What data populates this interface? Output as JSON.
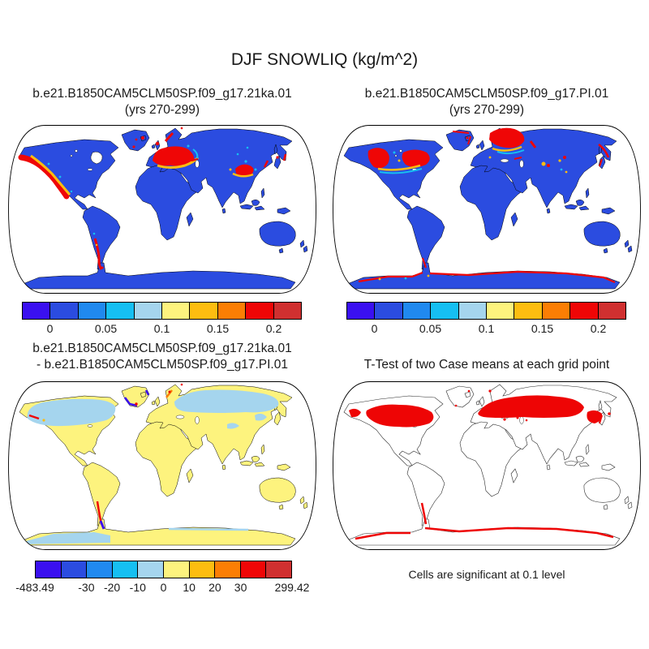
{
  "title": "DJF SNOWLIQ (kg/m^2)",
  "panels": {
    "top_left": {
      "title_line1": "b.e21.B1850CAM5CLM50SP.f09_g17.21ka.01",
      "title_line2": "(yrs 270-299)"
    },
    "top_right": {
      "title_line1": "b.e21.B1850CAM5CLM50SP.f09_g17.PI.01",
      "title_line2": "(yrs 270-299)"
    },
    "bottom_left": {
      "title_line1": "b.e21.B1850CAM5CLM50SP.f09_g17.21ka.01",
      "title_line2": "- b.e21.B1850CAM5CLM50SP.f09_g17.PI.01"
    },
    "bottom_right": {
      "title": "T-Test of two Case means at each grid point",
      "caption": "Cells are significant at 0.1 level"
    }
  },
  "palette": {
    "colors": [
      "#3a10f0",
      "#2b4ce0",
      "#2089ef",
      "#16bff2",
      "#a5d5ee",
      "#fdf37e",
      "#fdbd10",
      "#fb7e04",
      "#ef0606",
      "#d03030"
    ]
  },
  "colors": {
    "land_blue": "#2b4ce0",
    "diff_pos": "#fdf37e",
    "diff_neg": "#a5d5ee",
    "deep_blue": "#3a10f0",
    "cyan": "#16bff2",
    "amber": "#fdbd10",
    "orange": "#fb7e04",
    "red": "#ef0606",
    "sig_red": "#ee0505",
    "outline": "#000000"
  },
  "colorbars": {
    "mean": {
      "ticks": [
        {
          "label": "0",
          "pos": 10
        },
        {
          "label": "0.05",
          "pos": 30
        },
        {
          "label": "0.1",
          "pos": 50
        },
        {
          "label": "0.15",
          "pos": 70
        },
        {
          "label": "0.2",
          "pos": 90
        }
      ]
    },
    "diff": {
      "ticks": [
        {
          "label": "-483.49",
          "pos": 0
        },
        {
          "label": "-30",
          "pos": 20
        },
        {
          "label": "-20",
          "pos": 30
        },
        {
          "label": "-10",
          "pos": 40
        },
        {
          "label": "0",
          "pos": 50
        },
        {
          "label": "10",
          "pos": 60
        },
        {
          "label": "20",
          "pos": 70
        },
        {
          "label": "30",
          "pos": 80
        },
        {
          "label": "299.42",
          "pos": 100
        }
      ]
    }
  },
  "chart_data": [
    {
      "type": "heatmap",
      "subtype": "global-map-robinson",
      "title": "b.e21.B1850CAM5CLM50SP.f09_g17.21ka.01 (yrs 270-299)",
      "variable": "DJF SNOWLIQ",
      "units": "kg/m^2",
      "colorbar_tick_labels": [
        "0",
        "0.05",
        "0.1",
        "0.15",
        "0.2"
      ],
      "colorbar_levels": [
        0,
        0.025,
        0.05,
        0.075,
        0.1,
        0.125,
        0.15,
        0.175,
        0.2
      ],
      "n_color_cells": 10,
      "legend_position": "below",
      "description": "Land mostly lowest blue bin; high values (red) along NW North America coast/cordillera, central Europe band, Tibet/East Asia, southern Andes, Iceland, Norway coast; oceans white; Antarctica lowest bin"
    },
    {
      "type": "heatmap",
      "subtype": "global-map-robinson",
      "title": "b.e21.B1850CAM5CLM50SP.f09_g17.PI.01 (yrs 270-299)",
      "variable": "DJF SNOWLIQ",
      "units": "kg/m^2",
      "colorbar_tick_labels": [
        "0",
        "0.05",
        "0.1",
        "0.15",
        "0.2"
      ],
      "colorbar_levels": [
        0,
        0.025,
        0.05,
        0.075,
        0.1,
        0.125,
        0.15,
        0.175,
        0.2
      ],
      "n_color_cells": 10,
      "legend_position": "below",
      "description": "High values (red) over central/eastern Canada and Rockies, Scandinavia and NW Russia, Caucasus, Central and NE Asia, Antarctic coastal fringe; land otherwise lowest blue bin"
    },
    {
      "type": "heatmap",
      "subtype": "global-map-robinson-difference",
      "title": "b.e21.B1850CAM5CLM50SP.f09_g17.21ka.01 - b.e21.B1850CAM5CLM50SP.f09_g17.PI.01",
      "variable": "DJF SNOWLIQ difference",
      "units": "kg/m^2",
      "colorbar_tick_labels": [
        "-483.49",
        "-30",
        "-20",
        "-10",
        "0",
        "10",
        "20",
        "30",
        "299.42"
      ],
      "data_min": -483.49,
      "data_max": 299.42,
      "n_color_cells": 10,
      "legend_position": "below",
      "description": "Slight positive (pale yellow) over most land; slight negative (light blue) over northern Canada, Siberia, parts of Antarctica; strong negative (dark blue) south Greenland and Antarctic Peninsula; strong positive (red/orange) Alaska coast, Norway coast, southern Andes"
    },
    {
      "type": "map",
      "subtype": "global-map-robinson-significance",
      "title": "T-Test of two Case means at each grid point",
      "note": "Cells are significant at 0.1 level",
      "significant_color": "#ee0505",
      "description": "Red significant cells over mid-latitude North America, Europe through Russia and East Asia, southern Andes, Antarctic coastline; land otherwise white"
    }
  ]
}
